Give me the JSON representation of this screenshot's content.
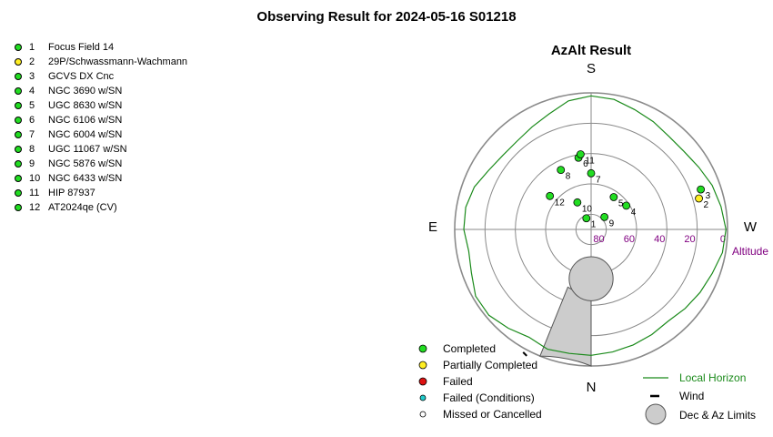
{
  "title": "Observing Result for 2024-05-16 S01218",
  "targets": [
    {
      "num": "1",
      "name": "Focus Field 14",
      "status": "completed"
    },
    {
      "num": "2",
      "name": "29P/Schwassmann-Wachmann",
      "status": "partial"
    },
    {
      "num": "3",
      "name": "GCVS DX Cnc",
      "status": "completed"
    },
    {
      "num": "4",
      "name": "NGC 3690 w/SN",
      "status": "completed"
    },
    {
      "num": "5",
      "name": "UGC 8630 w/SN",
      "status": "completed"
    },
    {
      "num": "6",
      "name": "NGC 6106 w/SN",
      "status": "completed"
    },
    {
      "num": "7",
      "name": "NGC 6004 w/SN",
      "status": "completed"
    },
    {
      "num": "8",
      "name": "UGC 11067 w/SN",
      "status": "completed"
    },
    {
      "num": "9",
      "name": "NGC 5876 w/SN",
      "status": "completed"
    },
    {
      "num": "10",
      "name": "NGC 6433 w/SN",
      "status": "completed"
    },
    {
      "num": "11",
      "name": "HIP 87937",
      "status": "completed"
    },
    {
      "num": "12",
      "name": "AT2024qe (CV)",
      "status": "completed"
    }
  ],
  "colors": {
    "completed": "#22dd22",
    "partial": "#ffee22",
    "failed": "#dd1111",
    "failed_conditions": "#22cccc",
    "missed": "#ffffff",
    "horizon": "#1a8a1a",
    "altitude_label": "#800080",
    "limits_fill": "#cccccc"
  },
  "chart_data": {
    "type": "polar-scatter",
    "title": "AzAlt Result",
    "directions": {
      "top": "S",
      "bottom": "N",
      "left": "E",
      "right": "W"
    },
    "altitude_axis_label": "Altitude",
    "altitude_rings": [
      0,
      20,
      40,
      60,
      80
    ],
    "altitude_ticks": [
      "80",
      "60",
      "40",
      "20",
      "0"
    ],
    "points": [
      {
        "label": "1",
        "az": 157,
        "alt": 82,
        "status": "completed"
      },
      {
        "label": "2",
        "az": 254,
        "alt": 16,
        "status": "partial"
      },
      {
        "label": "3",
        "az": 250,
        "alt": 13,
        "status": "completed"
      },
      {
        "label": "4",
        "az": 236,
        "alt": 62,
        "status": "completed"
      },
      {
        "label": "5",
        "az": 215,
        "alt": 64,
        "status": "completed"
      },
      {
        "label": "6",
        "az": 170,
        "alt": 42,
        "status": "completed"
      },
      {
        "label": "7",
        "az": 180,
        "alt": 53,
        "status": "completed"
      },
      {
        "label": "8",
        "az": 153,
        "alt": 46,
        "status": "completed"
      },
      {
        "label": "9",
        "az": 227,
        "alt": 78,
        "status": "completed"
      },
      {
        "label": "10",
        "az": 153,
        "alt": 70,
        "status": "completed"
      },
      {
        "label": "11",
        "az": 172,
        "alt": 40,
        "status": "completed"
      },
      {
        "label": "12",
        "az": 129,
        "alt": 55,
        "status": "completed"
      }
    ],
    "local_horizon": [
      [
        0,
        7
      ],
      [
        10,
        7
      ],
      [
        20,
        6
      ],
      [
        30,
        8
      ],
      [
        40,
        5
      ],
      [
        50,
        2
      ],
      [
        60,
        2
      ],
      [
        70,
        6
      ],
      [
        80,
        8
      ],
      [
        90,
        6
      ],
      [
        100,
        6
      ],
      [
        110,
        8
      ],
      [
        120,
        12
      ],
      [
        130,
        14
      ],
      [
        140,
        14
      ],
      [
        150,
        12
      ],
      [
        160,
        9
      ],
      [
        170,
        4
      ],
      [
        180,
        2
      ],
      [
        190,
        3
      ],
      [
        200,
        6
      ],
      [
        210,
        8
      ],
      [
        220,
        10
      ],
      [
        230,
        10
      ],
      [
        240,
        8
      ],
      [
        250,
        5
      ],
      [
        260,
        3
      ],
      [
        270,
        1
      ],
      [
        280,
        2
      ],
      [
        290,
        5
      ],
      [
        300,
        7
      ],
      [
        310,
        9
      ],
      [
        320,
        11
      ],
      [
        330,
        10
      ],
      [
        340,
        9
      ],
      [
        350,
        8
      ]
    ],
    "dec_limit_alt_range": [
      43,
      72
    ],
    "az_limit_wedge": {
      "az_from": 0,
      "az_to": 22
    },
    "wind_az": 28,
    "legend_left": [
      {
        "status": "completed",
        "label": "Completed"
      },
      {
        "status": "partial",
        "label": "Partially Completed"
      },
      {
        "status": "failed",
        "label": "Failed"
      },
      {
        "status": "failed_conditions",
        "label": "Failed (Conditions)"
      },
      {
        "status": "missed",
        "label": "Missed or Cancelled"
      }
    ],
    "legend_right": {
      "horizon": "Local Horizon",
      "wind": "Wind",
      "limits": "Dec & Az Limits"
    }
  }
}
